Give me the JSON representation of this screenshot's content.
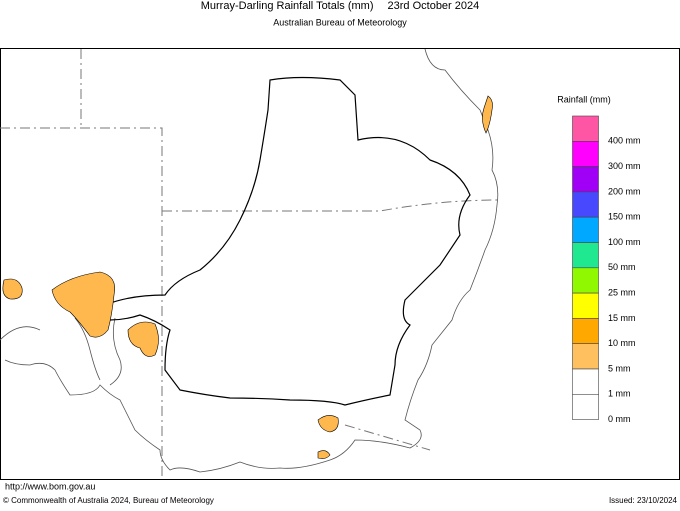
{
  "header": {
    "title": "Murray-Darling Rainfall Totals (mm)",
    "date": "23rd October 2024",
    "subtitle": "Australian Bureau of Meteorology"
  },
  "legend": {
    "title": "Rainfall (mm)",
    "items": [
      {
        "label": "400 mm",
        "color": "#ff55a5"
      },
      {
        "label": "300 mm",
        "color": "#ff00ff"
      },
      {
        "label": "200 mm",
        "color": "#a000f5"
      },
      {
        "label": "150 mm",
        "color": "#4848ff"
      },
      {
        "label": "100 mm",
        "color": "#00a8ff"
      },
      {
        "label": "50 mm",
        "color": "#20e890"
      },
      {
        "label": "25 mm",
        "color": "#90f800"
      },
      {
        "label": "15 mm",
        "color": "#ffff00"
      },
      {
        "label": "10 mm",
        "color": "#ffa800"
      },
      {
        "label": "5 mm",
        "color": "#ffc060"
      },
      {
        "label": "1 mm",
        "color": "#ffffff"
      },
      {
        "label": "0 mm",
        "color": "#ffffff"
      }
    ]
  },
  "footer": {
    "url": "http://www.bom.gov.au",
    "copyright": "© Commonwealth of Australia 2024, Bureau of Meteorology",
    "issued": "Issued: 23/10/2024"
  }
}
